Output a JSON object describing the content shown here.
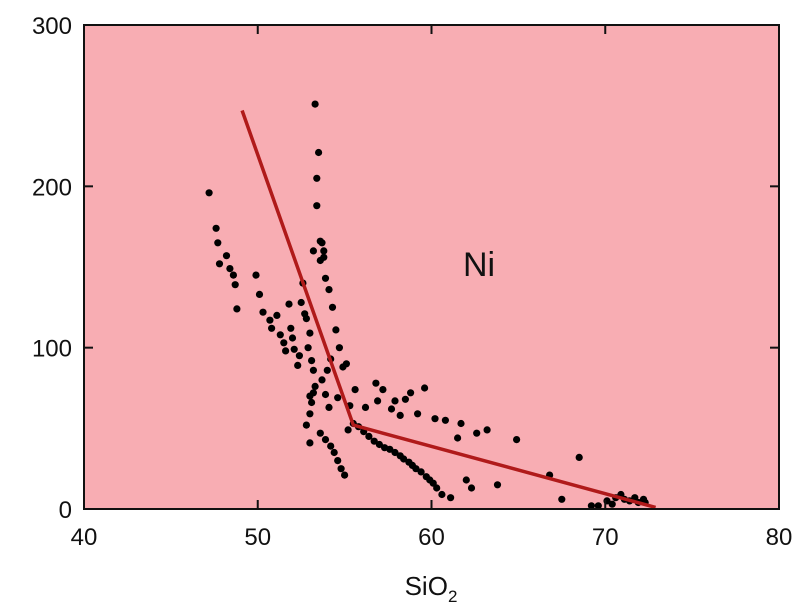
{
  "chart_data": {
    "type": "scatter",
    "title": "",
    "annotation": "Ni",
    "xlabel": "SiO",
    "xlabel_subscript": "2",
    "ylabel": "",
    "xlim": [
      40,
      80
    ],
    "ylim": [
      0,
      300
    ],
    "xticks": [
      40,
      50,
      60,
      70,
      80
    ],
    "yticks": [
      0,
      100,
      200,
      300
    ],
    "grid": false,
    "colors": {
      "background": "#f8adb3",
      "points": "#000000",
      "trend": "#b01a1a",
      "axes": "#111111"
    },
    "trend_line": {
      "x": [
        49.1,
        55.5,
        72.9
      ],
      "y": [
        247,
        52,
        1
      ]
    },
    "points": {
      "x": [
        47.2,
        47.6,
        47.7,
        47.8,
        48.2,
        48.4,
        48.6,
        48.7,
        48.8,
        49.9,
        50.1,
        50.3,
        50.7,
        50.8,
        51.1,
        51.3,
        51.5,
        51.6,
        51.8,
        51.9,
        52.0,
        52.1,
        52.3,
        52.4,
        52.6,
        52.5,
        52.7,
        52.8,
        53.0,
        52.9,
        53.1,
        53.2,
        53.3,
        53.5,
        53.4,
        53.6,
        53.8,
        53.6,
        53.9,
        54.1,
        54.3,
        54.5,
        54.7,
        54.2,
        54.0,
        53.7,
        53.3,
        53.2,
        53.1,
        53.0,
        52.8,
        53.6,
        53.9,
        54.2,
        54.4,
        54.6,
        54.8,
        55.0,
        55.2,
        55.5,
        55.8,
        56.1,
        56.4,
        56.7,
        57.0,
        57.3,
        57.6,
        57.9,
        58.2,
        58.4,
        58.7,
        58.9,
        59.1,
        59.4,
        59.7,
        59.9,
        60.1,
        60.3,
        60.6,
        61.1,
        61.5,
        62.0,
        62.3,
        63.2,
        63.8,
        64.9,
        66.8,
        67.5,
        68.5,
        69.2,
        69.6,
        70.1,
        70.4,
        70.6,
        70.9,
        71.1,
        71.4,
        71.7,
        71.9,
        72.2,
        72.3,
        55.6,
        56.8,
        57.2,
        57.9,
        58.5,
        58.8,
        59.6,
        60.2,
        53.0,
        53.9,
        54.6,
        55.3,
        56.2,
        56.9,
        57.7,
        58.2,
        59.2,
        60.8,
        61.7,
        62.6,
        53.4,
        53.7,
        53.8,
        53.2,
        53.0,
        55.1,
        54.9,
        54.1
      ],
      "y": [
        196,
        174,
        165,
        152,
        157,
        149,
        145,
        139,
        124,
        145,
        133,
        122,
        117,
        112,
        120,
        108,
        103,
        98,
        127,
        112,
        106,
        99,
        89,
        95,
        140,
        128,
        121,
        118,
        109,
        100,
        92,
        86,
        251,
        221,
        188,
        166,
        160,
        154,
        143,
        136,
        125,
        111,
        100,
        93,
        86,
        80,
        76,
        72,
        66,
        59,
        52,
        47,
        43,
        39,
        35,
        30,
        25,
        21,
        49,
        53,
        51,
        48,
        45,
        42,
        40,
        38,
        37,
        35,
        33,
        31,
        29,
        27,
        25,
        23,
        20,
        18,
        16,
        13,
        9,
        7,
        44,
        18,
        13,
        49,
        15,
        43,
        21,
        6,
        32,
        2,
        2,
        5,
        3,
        7,
        9,
        6,
        5,
        7,
        4,
        6,
        4,
        74,
        78,
        74,
        67,
        68,
        72,
        75,
        56,
        70,
        71,
        69,
        64,
        63,
        67,
        62,
        58,
        59,
        55,
        53,
        47,
        205,
        165,
        156,
        160,
        41,
        90,
        88,
        63
      ]
    }
  }
}
